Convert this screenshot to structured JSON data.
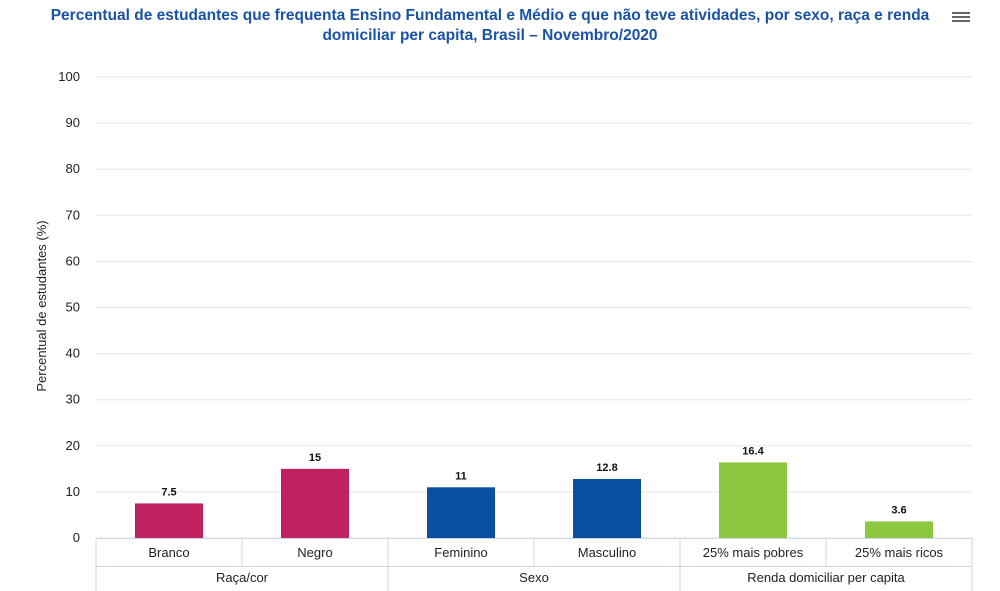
{
  "chart_data": {
    "type": "bar",
    "title": "Percentual de estudantes que frequenta Ensino Fundamental e Médio e que não teve atividades, por sexo, raça e renda domiciliar per capita, Brasil – Novembro/2020",
    "ylabel": "Percentual de estudantes (%)",
    "ylim": [
      0,
      100
    ],
    "yticks": [
      0,
      10,
      20,
      30,
      40,
      50,
      60,
      70,
      80,
      90,
      100
    ],
    "grid": true,
    "categories": [
      "Branco",
      "Negro",
      "Feminino",
      "Masculino",
      "25% mais pobres",
      "25% mais ricos"
    ],
    "values": [
      7.5,
      15,
      11,
      12.8,
      16.4,
      3.6
    ],
    "data_labels": [
      "7.5",
      "15",
      "11",
      "12.8",
      "16.4",
      "3.6"
    ],
    "groups": [
      {
        "name": "Raça/cor",
        "categories": [
          "Branco",
          "Negro"
        ],
        "color": "#c0225f"
      },
      {
        "name": "Sexo",
        "categories": [
          "Feminino",
          "Masculino"
        ],
        "color": "#0b4fa3"
      },
      {
        "name": "Renda domiciliar per capita",
        "categories": [
          "25% mais pobres",
          "25% mais ricos"
        ],
        "color": "#8dc63f"
      }
    ]
  },
  "menu_icon": "hamburger-menu-icon"
}
